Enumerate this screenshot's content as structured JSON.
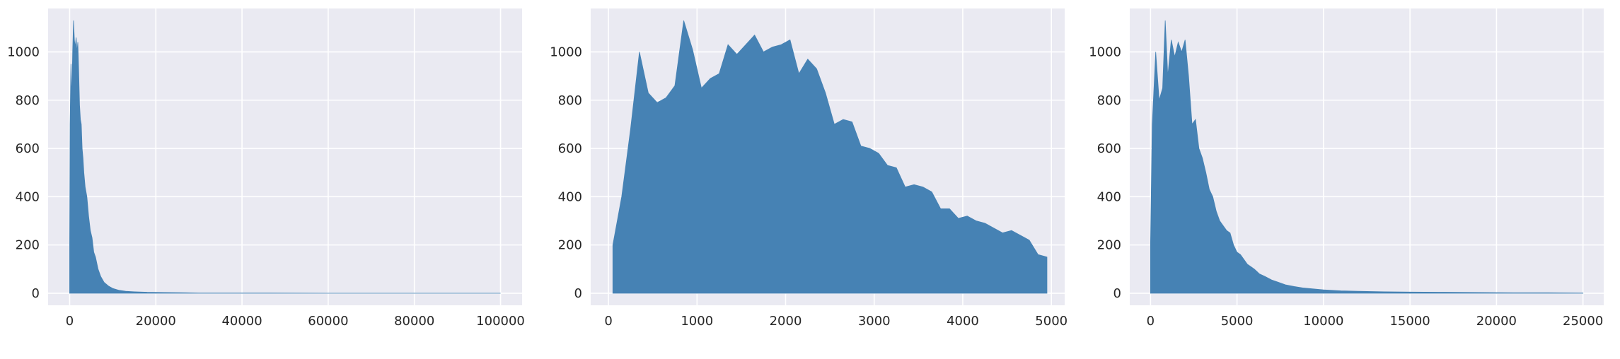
{
  "chart_data": [
    {
      "type": "area",
      "title": "",
      "xlabel": "",
      "ylabel": "",
      "xlim": [
        -5000,
        105000
      ],
      "ylim": [
        -50,
        1180
      ],
      "grid": true,
      "xticks": [
        0,
        20000,
        40000,
        60000,
        80000,
        100000
      ],
      "yticks": [
        0,
        200,
        400,
        600,
        800,
        1000
      ],
      "xtick_labels": [
        "0",
        "20000",
        "40000",
        "60000",
        "80000",
        "100000"
      ],
      "ytick_labels": [
        "0",
        "200",
        "400",
        "600",
        "800",
        "1000"
      ],
      "fill_color": "#4682b4",
      "x": [
        0,
        100,
        300,
        500,
        700,
        900,
        1100,
        1300,
        1500,
        1700,
        1900,
        2100,
        2300,
        2500,
        2700,
        2900,
        3100,
        3300,
        3600,
        4000,
        4400,
        4800,
        5200,
        5600,
        6000,
        6600,
        7200,
        8000,
        9000,
        10000,
        11500,
        13000,
        15000,
        18000,
        22000,
        27000,
        30000,
        40000,
        60000,
        80000,
        100000
      ],
      "y": [
        200,
        700,
        950,
        800,
        1000,
        1130,
        1050,
        1020,
        1060,
        1000,
        1040,
        920,
        780,
        720,
        700,
        600,
        560,
        500,
        440,
        400,
        320,
        260,
        230,
        170,
        150,
        100,
        70,
        45,
        30,
        20,
        12,
        8,
        6,
        4,
        3,
        2,
        1,
        1,
        0,
        0,
        0
      ]
    },
    {
      "type": "area",
      "title": "",
      "xlabel": "",
      "ylabel": "",
      "xlim": [
        -200,
        5150
      ],
      "ylim": [
        -50,
        1180
      ],
      "grid": true,
      "xticks": [
        0,
        1000,
        2000,
        3000,
        4000,
        5000
      ],
      "yticks": [
        0,
        200,
        400,
        600,
        800,
        1000
      ],
      "xtick_labels": [
        "0",
        "1000",
        "2000",
        "3000",
        "4000",
        "5000"
      ],
      "ytick_labels": [
        "0",
        "200",
        "400",
        "600",
        "800",
        "1000"
      ],
      "fill_color": "#4682b4",
      "x": [
        50,
        150,
        250,
        350,
        450,
        550,
        650,
        750,
        850,
        950,
        1050,
        1150,
        1250,
        1350,
        1450,
        1550,
        1650,
        1750,
        1850,
        1950,
        2050,
        2150,
        2250,
        2350,
        2450,
        2550,
        2650,
        2750,
        2850,
        2950,
        3050,
        3150,
        3250,
        3350,
        3450,
        3550,
        3650,
        3750,
        3850,
        3950,
        4050,
        4150,
        4250,
        4350,
        4450,
        4550,
        4650,
        4750,
        4850,
        4950
      ],
      "y": [
        200,
        400,
        680,
        1000,
        830,
        790,
        810,
        860,
        1130,
        1010,
        850,
        890,
        910,
        1030,
        990,
        1030,
        1070,
        1000,
        1020,
        1030,
        1050,
        910,
        970,
        930,
        830,
        700,
        720,
        710,
        610,
        600,
        580,
        530,
        520,
        440,
        450,
        440,
        420,
        350,
        350,
        310,
        320,
        300,
        290,
        270,
        250,
        260,
        240,
        220,
        160,
        150
      ]
    },
    {
      "type": "area",
      "title": "",
      "xlabel": "",
      "ylabel": "",
      "xlim": [
        -1200,
        26200
      ],
      "ylim": [
        -50,
        1180
      ],
      "grid": true,
      "xticks": [
        0,
        5000,
        10000,
        15000,
        20000,
        25000
      ],
      "yticks": [
        0,
        200,
        400,
        600,
        800,
        1000
      ],
      "xtick_labels": [
        "0",
        "5000",
        "10000",
        "15000",
        "20000",
        "25000"
      ],
      "ytick_labels": [
        "0",
        "200",
        "400",
        "600",
        "800",
        "1000"
      ],
      "fill_color": "#4682b4",
      "x": [
        0,
        100,
        300,
        500,
        700,
        850,
        1000,
        1200,
        1400,
        1600,
        1800,
        2000,
        2200,
        2400,
        2600,
        2800,
        3000,
        3200,
        3400,
        3600,
        3800,
        4000,
        4200,
        4400,
        4600,
        4800,
        5000,
        5200,
        5400,
        5600,
        5800,
        6000,
        6300,
        6600,
        7000,
        7400,
        7800,
        8300,
        8800,
        9400,
        10000,
        11000,
        12000,
        13500,
        15000,
        17000,
        19000,
        21000,
        23000,
        25000
      ],
      "y": [
        200,
        700,
        1000,
        800,
        850,
        1130,
        900,
        1050,
        980,
        1040,
        1000,
        1050,
        900,
        700,
        720,
        600,
        560,
        500,
        430,
        400,
        340,
        300,
        280,
        260,
        250,
        200,
        170,
        160,
        140,
        120,
        110,
        100,
        80,
        70,
        55,
        45,
        35,
        28,
        22,
        18,
        14,
        10,
        8,
        6,
        5,
        4,
        3,
        2,
        2,
        1
      ]
    }
  ]
}
